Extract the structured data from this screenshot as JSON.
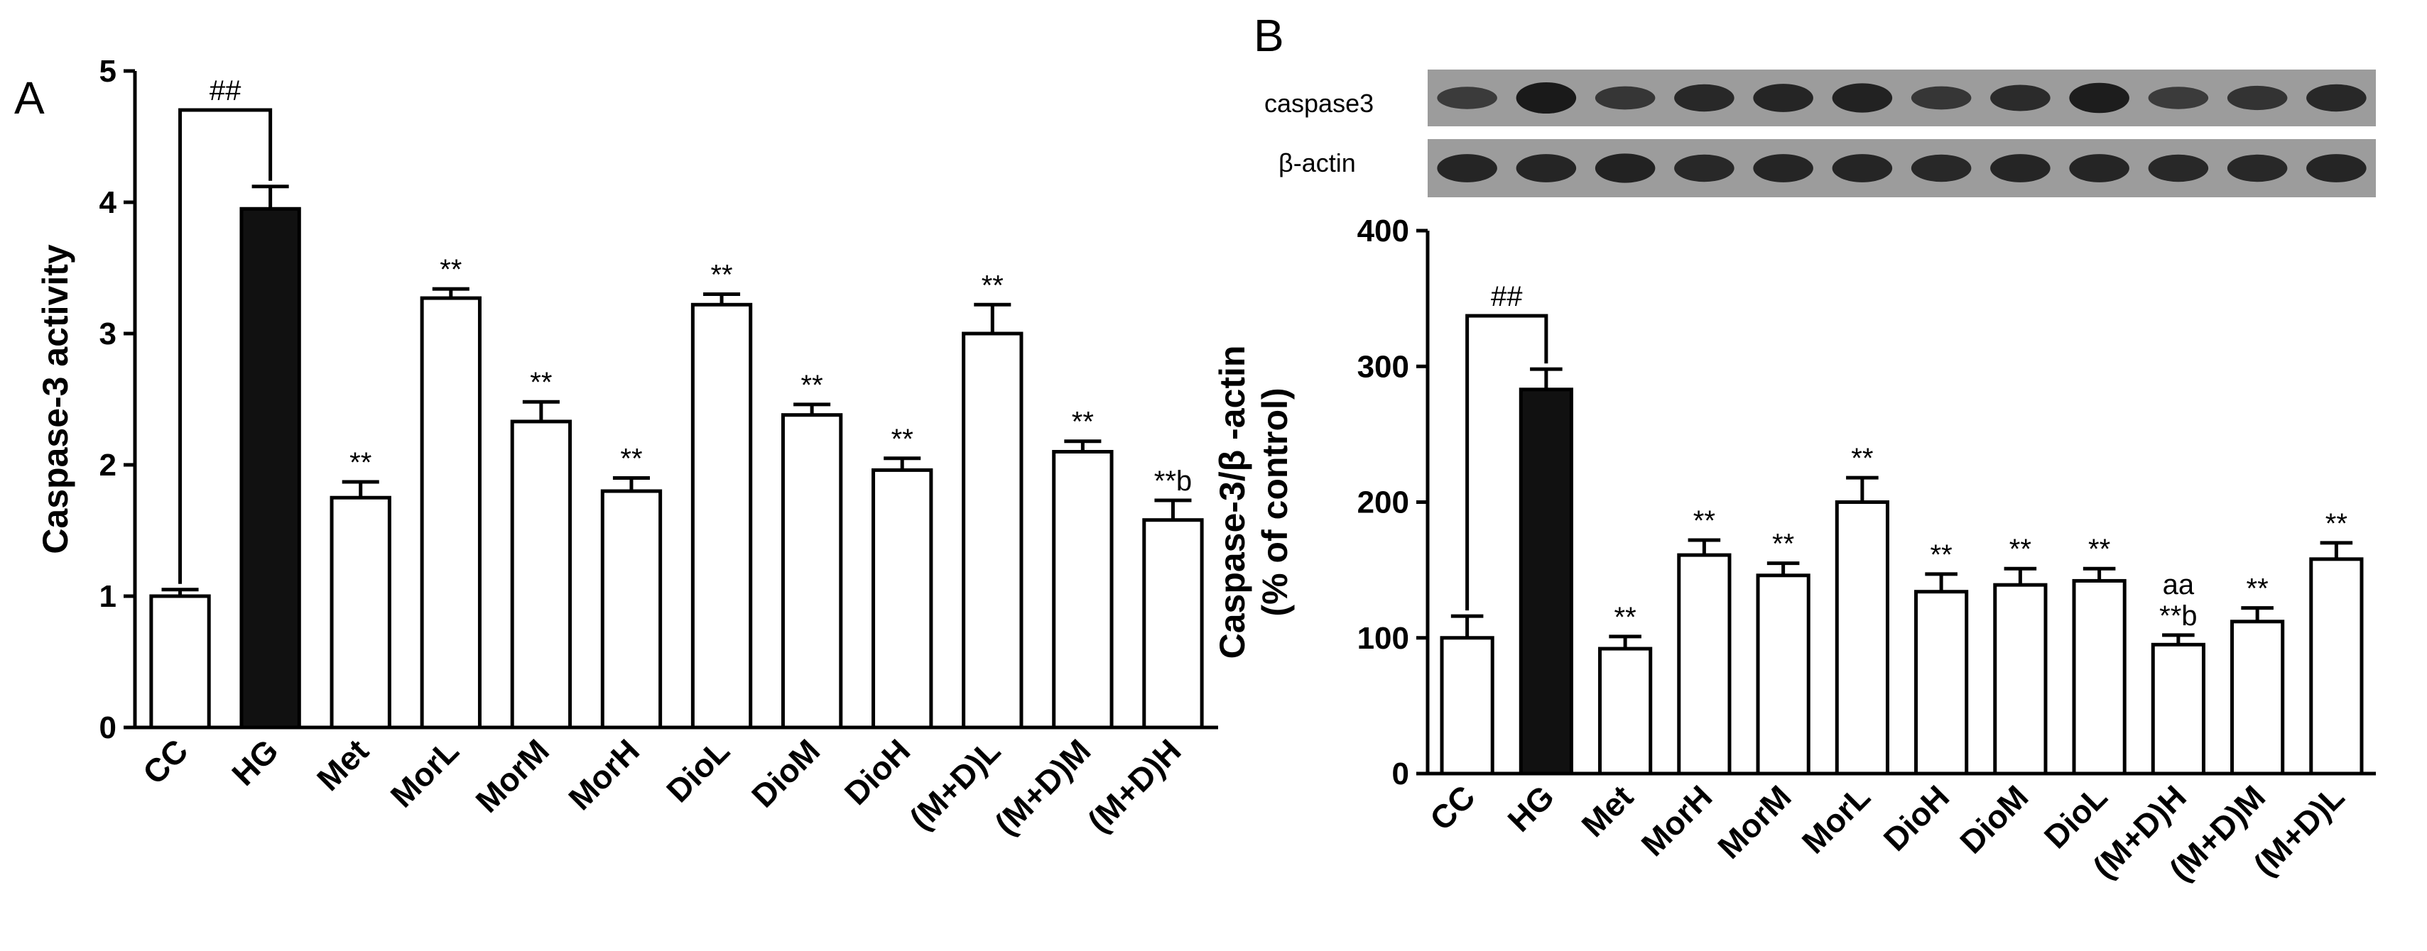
{
  "panels": [
    {
      "letter": "A"
    },
    {
      "letter": "B"
    }
  ],
  "blot": {
    "labels": [
      "caspase3",
      "β-actin"
    ],
    "caspase3_band_intensity": [
      0.55,
      1.0,
      0.6,
      0.8,
      0.85,
      0.9,
      0.6,
      0.75,
      0.95,
      0.55,
      0.65,
      0.8
    ],
    "actin_band_intensity": [
      0.85,
      0.85,
      0.9,
      0.8,
      0.85,
      0.85,
      0.8,
      0.85,
      0.85,
      0.8,
      0.8,
      0.85
    ]
  },
  "chart_data": [
    {
      "type": "bar",
      "panel": "A",
      "ylabel": "Caspase-3 activity",
      "xlabel": "",
      "categories": [
        "CC",
        "HG",
        "Met",
        "MorL",
        "MorM",
        "MorH",
        "DioL",
        "DioM",
        "DioH",
        "(M+D)L",
        "(M+D)M",
        "(M+D)H"
      ],
      "values": [
        1.0,
        3.95,
        1.75,
        3.27,
        2.33,
        1.8,
        3.22,
        2.38,
        1.96,
        3.0,
        2.1,
        1.58
      ],
      "errors": [
        0.05,
        0.17,
        0.12,
        0.07,
        0.15,
        0.1,
        0.08,
        0.08,
        0.09,
        0.22,
        0.08,
        0.15
      ],
      "bar_colors": [
        "#ffffff",
        "#111111",
        "#ffffff",
        "#ffffff",
        "#ffffff",
        "#ffffff",
        "#ffffff",
        "#ffffff",
        "#ffffff",
        "#ffffff",
        "#ffffff",
        "#ffffff"
      ],
      "annotations": [
        "",
        "",
        "**",
        "**",
        "**",
        "**",
        "**",
        "**",
        "**",
        "**",
        "**",
        "**b"
      ],
      "significance_bracket": {
        "from": "CC",
        "to": "HG",
        "label": "##"
      },
      "yticks": [
        0,
        1,
        2,
        3,
        4,
        5
      ],
      "ylim": [
        0,
        5
      ],
      "grid": false
    },
    {
      "type": "bar",
      "panel": "B",
      "ylabel": [
        "Caspase-3/β -actin",
        "(% of control)"
      ],
      "xlabel": "",
      "categories": [
        "CC",
        "HG",
        "Met",
        "MorH",
        "MorM",
        "MorL",
        "DioH",
        "DioM",
        "DioL",
        "(M+D)H",
        "(M+D)M",
        "(M+D)L"
      ],
      "values": [
        100,
        283,
        92,
        161,
        146,
        200,
        134,
        139,
        142,
        95,
        112,
        158
      ],
      "errors": [
        16,
        15,
        9,
        11,
        9,
        18,
        13,
        12,
        9,
        7,
        10,
        12
      ],
      "bar_colors": [
        "#ffffff",
        "#111111",
        "#ffffff",
        "#ffffff",
        "#ffffff",
        "#ffffff",
        "#ffffff",
        "#ffffff",
        "#ffffff",
        "#ffffff",
        "#ffffff",
        "#ffffff"
      ],
      "annotations": [
        "",
        "",
        "**",
        "**",
        "**",
        "**",
        "**",
        "**",
        "**",
        "aa\n**b",
        "**",
        "**"
      ],
      "significance_bracket": {
        "from": "CC",
        "to": "HG",
        "label": "##"
      },
      "yticks": [
        0,
        100,
        200,
        300,
        400
      ],
      "ylim": [
        0,
        400
      ],
      "grid": false
    }
  ]
}
